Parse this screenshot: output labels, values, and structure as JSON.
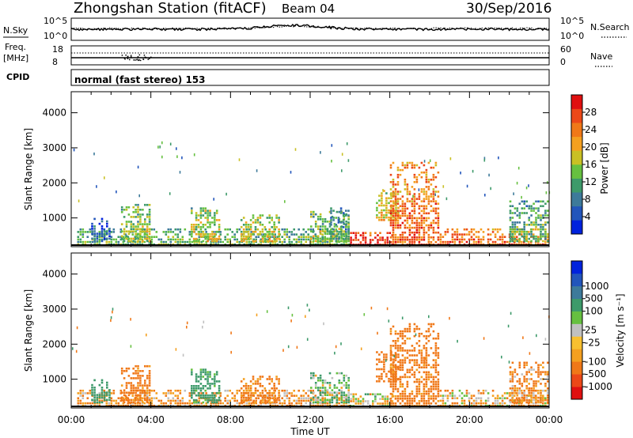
{
  "header": {
    "station": "Zhongshan Station (fitACF)",
    "beam": "Beam 04",
    "date": "30/Sep/2016"
  },
  "noise_panel": {
    "left_label": "N.Sky",
    "left_ticks": [
      "10^5",
      "10^0"
    ],
    "right_label": "N.Search",
    "right_ticks": [
      "10^5",
      "10^0"
    ]
  },
  "freq_panel": {
    "left_label_1": "Freq.",
    "left_label_2": "[MHz]",
    "left_ticks": [
      "18",
      "8"
    ],
    "right_label": "Nave",
    "right_ticks": [
      "60",
      "0"
    ]
  },
  "cpid_panel": {
    "label": "CPID",
    "text": "normal (fast stereo) 153"
  },
  "colors": {
    "power": [
      "#0022dd",
      "#2255bb",
      "#3d7a9a",
      "#3d9a6a",
      "#66c040",
      "#c9c024",
      "#f4a020",
      "#f07818",
      "#ec4818",
      "#e01010"
    ],
    "velocity": [
      "#e01010",
      "#ec4818",
      "#f07818",
      "#f4a020",
      "#f8c030",
      "#c0c0c0",
      "#66c040",
      "#3d9a6a",
      "#3d7a9a",
      "#2255bb",
      "#0022dd"
    ]
  },
  "chart_data": [
    {
      "type": "heatmap",
      "title": "Power",
      "ylabel": "Slant Range [km]",
      "xlabel": "",
      "x_ticks": [
        "00:00",
        "04:00",
        "08:00",
        "12:00",
        "16:00",
        "20:00",
        "00:00"
      ],
      "y_ticks": [
        "1000",
        "2000",
        "3000",
        "4000"
      ],
      "ylim": [
        180,
        4600
      ],
      "xlim_hours": [
        0,
        24
      ],
      "colorbar": {
        "label": "Power [dB]",
        "ticks": [
          "4",
          "8",
          "12",
          "16",
          "20",
          "24",
          "28"
        ],
        "range": [
          0,
          32
        ]
      },
      "regions": [
        {
          "t0": 0.3,
          "t1": 14.0,
          "r0": 200,
          "r1": 700,
          "p": 14
        },
        {
          "t0": 1.0,
          "t1": 2.0,
          "r0": 300,
          "r1": 1000,
          "p": 8
        },
        {
          "t0": 2.5,
          "t1": 4.0,
          "r0": 300,
          "r1": 1400,
          "p": 16
        },
        {
          "t0": 6.0,
          "t1": 7.5,
          "r0": 300,
          "r1": 1300,
          "p": 18
        },
        {
          "t0": 8.5,
          "t1": 10.5,
          "r0": 300,
          "r1": 1100,
          "p": 18
        },
        {
          "t0": 12.0,
          "t1": 14.0,
          "r0": 300,
          "r1": 1200,
          "p": 16
        },
        {
          "t0": 13.0,
          "t1": 14.0,
          "r0": 300,
          "r1": 1300,
          "p": 12
        },
        {
          "t0": 14.0,
          "t1": 16.2,
          "r0": 200,
          "r1": 600,
          "p": 30
        },
        {
          "t0": 15.3,
          "t1": 16.5,
          "r0": 900,
          "r1": 1800,
          "p": 20
        },
        {
          "t0": 16.0,
          "t1": 18.5,
          "r0": 200,
          "r1": 2600,
          "p": 26
        },
        {
          "t0": 18.5,
          "t1": 24.0,
          "r0": 200,
          "r1": 700,
          "p": 26
        },
        {
          "t0": 22.0,
          "t1": 24.0,
          "r0": 300,
          "r1": 1500,
          "p": 14
        }
      ]
    },
    {
      "type": "heatmap",
      "title": "Velocity",
      "ylabel": "Slant Range [km]",
      "xlabel": "Time UT",
      "x_ticks": [
        "00:00",
        "04:00",
        "08:00",
        "12:00",
        "16:00",
        "20:00",
        "00:00"
      ],
      "y_ticks": [
        "1000",
        "2000",
        "3000",
        "4000"
      ],
      "ylim": [
        180,
        4600
      ],
      "xlim_hours": [
        0,
        24
      ],
      "colorbar": {
        "label": "Velocity [m s⁻¹]",
        "ticks": [
          "-1000",
          "-500",
          "-100",
          "-25",
          "25",
          "100",
          "500",
          "1000"
        ]
      },
      "regions": [
        {
          "t0": 0.3,
          "t1": 14.0,
          "r0": 200,
          "r1": 700,
          "v": -100
        },
        {
          "t0": 1.0,
          "t1": 2.0,
          "r0": 300,
          "r1": 1000,
          "v": 300
        },
        {
          "t0": 2.5,
          "t1": 4.0,
          "r0": 300,
          "r1": 1400,
          "v": -200
        },
        {
          "t0": 6.0,
          "t1": 7.5,
          "r0": 300,
          "r1": 1300,
          "v": 200
        },
        {
          "t0": 8.5,
          "t1": 10.5,
          "r0": 300,
          "r1": 1100,
          "v": -150
        },
        {
          "t0": 12.0,
          "t1": 14.0,
          "r0": 300,
          "r1": 1200,
          "v": 80
        },
        {
          "t0": 14.0,
          "t1": 16.2,
          "r0": 200,
          "r1": 600,
          "v": 0
        },
        {
          "t0": 15.3,
          "t1": 16.5,
          "r0": 900,
          "r1": 1800,
          "v": -300
        },
        {
          "t0": 16.0,
          "t1": 18.5,
          "r0": 200,
          "r1": 2600,
          "v": -200
        },
        {
          "t0": 18.5,
          "t1": 24.0,
          "r0": 200,
          "r1": 700,
          "v": -60
        },
        {
          "t0": 22.0,
          "t1": 24.0,
          "r0": 300,
          "r1": 1500,
          "v": -100
        }
      ]
    }
  ]
}
